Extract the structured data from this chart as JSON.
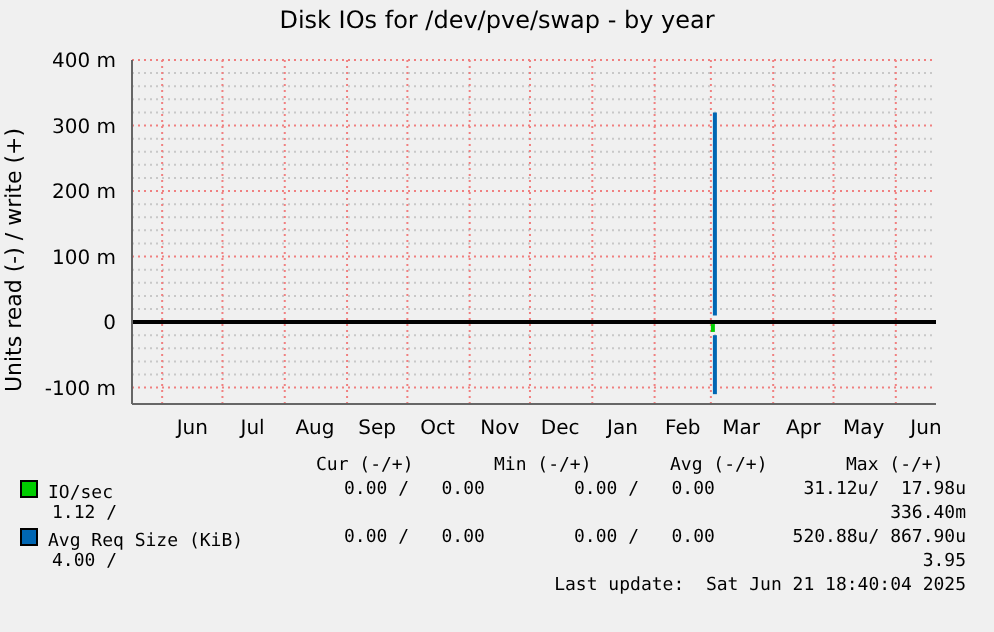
{
  "chart_data": {
    "type": "line",
    "title": "Disk IOs for /dev/pve/swap - by year",
    "ylabel": "Units read (-) / write (+)",
    "xlim": [
      "2024-05-17",
      "2025-06-21"
    ],
    "xticks": [
      {
        "value": "2024-06-01",
        "label": null
      },
      {
        "value": "2024-06-16",
        "label": "Jun"
      },
      {
        "value": "2024-07-01",
        "label": null
      },
      {
        "value": "2024-07-16",
        "label": "Jul"
      },
      {
        "value": "2024-08-01",
        "label": null
      },
      {
        "value": "2024-08-16",
        "label": "Aug"
      },
      {
        "value": "2024-09-01",
        "label": null
      },
      {
        "value": "2024-09-16",
        "label": "Sep"
      },
      {
        "value": "2024-10-01",
        "label": null
      },
      {
        "value": "2024-10-16",
        "label": "Oct"
      },
      {
        "value": "2024-11-01",
        "label": null
      },
      {
        "value": "2024-11-16",
        "label": "Nov"
      },
      {
        "value": "2024-12-01",
        "label": null
      },
      {
        "value": "2024-12-16",
        "label": "Dec"
      },
      {
        "value": "2025-01-01",
        "label": null
      },
      {
        "value": "2025-01-16",
        "label": "Jan"
      },
      {
        "value": "2025-02-01",
        "label": null
      },
      {
        "value": "2025-02-15",
        "label": "Feb"
      },
      {
        "value": "2025-03-01",
        "label": null
      },
      {
        "value": "2025-03-16",
        "label": "Mar"
      },
      {
        "value": "2025-04-01",
        "label": null
      },
      {
        "value": "2025-04-16",
        "label": "Apr"
      },
      {
        "value": "2025-05-01",
        "label": null
      },
      {
        "value": "2025-05-16",
        "label": "May"
      },
      {
        "value": "2025-06-01",
        "label": null
      },
      {
        "value": "2025-06-16",
        "label": "Jun"
      }
    ],
    "ylim": [
      -125,
      400
    ],
    "yticks": [
      {
        "value": -100,
        "label": "-100 m"
      },
      {
        "value": -80,
        "label": null
      },
      {
        "value": -60,
        "label": null
      },
      {
        "value": -40,
        "label": null
      },
      {
        "value": -20,
        "label": null
      },
      0,
      {
        "value": 20,
        "label": null
      },
      {
        "value": 40,
        "label": null
      },
      {
        "value": 60,
        "label": null
      },
      {
        "value": 80,
        "label": null
      },
      {
        "value": 100,
        "label": "100 m"
      },
      {
        "value": 120,
        "label": null
      },
      {
        "value": 140,
        "label": null
      },
      {
        "value": 160,
        "label": null
      },
      {
        "value": 180,
        "label": null
      },
      {
        "value": 200,
        "label": "200 m"
      },
      {
        "value": 220,
        "label": null
      },
      {
        "value": 240,
        "label": null
      },
      {
        "value": 260,
        "label": null
      },
      {
        "value": 280,
        "label": null
      },
      {
        "value": 300,
        "label": "300 m"
      },
      {
        "value": 320,
        "label": null
      },
      {
        "value": 340,
        "label": null
      },
      {
        "value": 360,
        "label": null
      },
      {
        "value": 380,
        "label": null
      },
      {
        "value": 400,
        "label": "400 m"
      }
    ],
    "grid": true,
    "legend": "bottom",
    "marker": "none",
    "line_style": "solid",
    "ref_lines": [
      {
        "axis": "y",
        "value": 0,
        "color": "#000000"
      }
    ],
    "series": [
      {
        "name": "IO/sec",
        "color": "#00cc00",
        "x": [
          "2025-03-02",
          "2025-03-02"
        ],
        "values": [
          -3,
          -15
        ]
      },
      {
        "name": "Avg Req Size (KiB)",
        "color": "#0066b3",
        "x": [
          "2025-03-03",
          "2025-03-03"
        ],
        "values": [
          10,
          320
        ]
      },
      {
        "color": "#0066b3",
        "x": [
          "2025-03-03",
          "2025-03-03"
        ],
        "values": [
          -20,
          -110
        ]
      }
    ],
    "annotations": [
      "Cur (-/+)",
      "Min (-/+)",
      "Avg (-/+)",
      "Max (-/+)",
      "0.00 /   0.00",
      "0.00 /   0.00",
      "31.12u/  17.98u",
      "1.12 /",
      "336.40m",
      "0.00 /   0.00",
      "0.00 /   0.00",
      "520.88u/ 867.90u",
      "4.00 /",
      "3.95",
      "Last update:  Sat Jun 21 18:40:04 2025"
    ]
  }
}
